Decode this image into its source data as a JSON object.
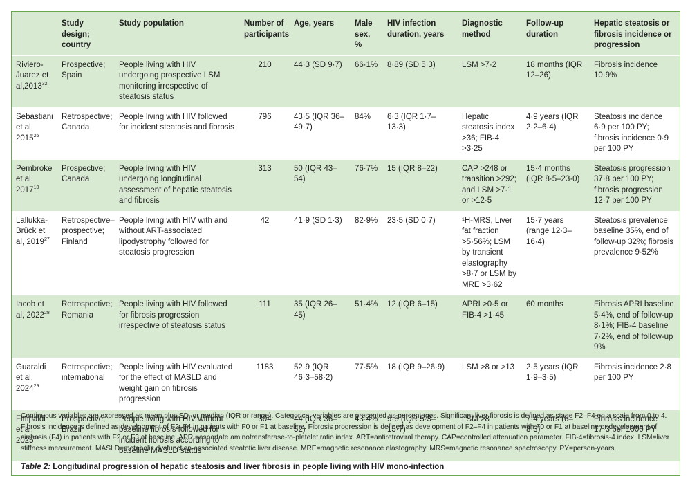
{
  "table": {
    "headers": [
      "",
      "Study design; country",
      "Study population",
      "Number of participants",
      "Age, years",
      "Male sex, %",
      "HIV infection duration, years",
      "Diagnostic method",
      "Follow-up duration",
      "Hepatic steatosis or fibrosis incidence or progression"
    ],
    "rows": [
      {
        "study": "Riviero-Juarez et al,2013",
        "ref": "32",
        "design": "Prospective; Spain",
        "population": "People living with HIV undergoing prospective LSM monitoring irrespective of steatosis status",
        "participants": "210",
        "age": "44·3 (SD 9·7)",
        "male": "66·1%",
        "duration": "8·89 (SD 5·3)",
        "method": "LSM >7·2",
        "followup": "18 months (IQR 12–26)",
        "outcome": "Fibrosis incidence 10·9%"
      },
      {
        "study": "Sebastiani et al, 2015",
        "ref": "26",
        "design": "Retrospective; Canada",
        "population": "People living with HIV followed for incident steatosis and fibrosis",
        "participants": "796",
        "age": "43·5 (IQR 36–49·7)",
        "male": "84%",
        "duration": "6·3 (IQR 1·7–13·3)",
        "method": "Hepatic steatosis index >36; FIB-4 >3·25",
        "followup": "4·9 years (IQR 2·2–6·4)",
        "outcome": "Steatosis incidence 6·9 per 100 PY; fibrosis incidence 0·9 per 100 PY"
      },
      {
        "study": "Pembroke et al, 2017",
        "ref": "10",
        "design": "Prospective; Canada",
        "population": "People living with HIV undergoing longitudinal assessment of hepatic steatosis and fibrosis",
        "participants": "313",
        "age": "50 (IQR 43–54)",
        "male": "76·7%",
        "duration": "15 (IQR 8–22)",
        "method": "CAP >248 or transition >292; and LSM >7·1 or >12·5",
        "followup": "15·4 months (IQR 8·5–23·0)",
        "outcome": "Steatosis progression 37·8 per 100 PY; fibrosis progression 12·7 per 100 PY"
      },
      {
        "study": "Lallukka-Brück et al, 2019",
        "ref": "27",
        "design": "Retrospective–prospective; Finland",
        "population": "People living with HIV with and without ART-associated lipodystrophy followed for steatosis progression",
        "participants": "42",
        "age": "41·9 (SD 1·3)",
        "male": "82·9%",
        "duration": "23·5 (SD 0·7)",
        "method": "¹H-MRS, Liver fat fraction >5·56%; LSM by transient elastography >8·7 or LSM by MRE >3·62",
        "followup": "15·7 years (range 12·3–16·4)",
        "outcome": "Steatosis prevalence baseline 35%, end of follow-up 32%; fibrosis prevalence 9·52%"
      },
      {
        "study": "Iacob et al, 2022",
        "ref": "28",
        "design": "Retrospective; Romania",
        "population": "People living with HIV followed for fibrosis progression irrespective of steatosis status",
        "participants": "111",
        "age": "35 (IQR 26–45)",
        "male": "51·4%",
        "duration": "12 (IQR 6–15)",
        "method": "APRI >0·5 or FIB-4 >1·45",
        "followup": "60 months",
        "outcome": "Fibrosis APRI baseline 5·4%, end of follow-up 8·1%; FIB-4 baseline 7·2%, end of follow-up 9%"
      },
      {
        "study": "Guaraldi et al, 2024",
        "ref": "29",
        "design": "Retrospective; international",
        "population": "People living with HIV evaluated for the effect of MASLD and weight gain on fibrosis progression",
        "participants": "1183",
        "age": "52·9 (IQR 46·3–58·2)",
        "male": "77·5%",
        "duration": "18 (IQR 9–26·9)",
        "method": "LSM >8 or >13",
        "followup": "2·5 years (IQR 1·9–3·5)",
        "outcome": "Fibrosis incidence 2·8 per 100 PY"
      },
      {
        "study": "Fittipaldi et al, 2025",
        "ref": "30",
        "design": "Prospective; Brazil",
        "population": "People living with HIV without baseline fibrosis followed for incident fibrosis according to baseline MASLD status",
        "participants": "304",
        "age": "44 (IQR 36–52)",
        "male": "43·4%",
        "duration": "9·6 (IQR 5·3–15·7)",
        "method": "LSM >8",
        "followup": "7·4 years (6–8·3)",
        "outcome": "Fibrosis incidence 17·3 per 1000 PY"
      }
    ]
  },
  "footnote": "Continuous variables are expressed as mean plus SD, or median (IQR or range). Categorical variables are presented as percentages. Significant liver fibrosis is defined as stage F2–F4 on a scale from 0 to 4. Fibrosis incidence is defined as development of F2–F4 in patients with F0 or F1 at baseline. Fibrosis progression is defined as development of F2–F4 in patients with F0 or F1 at baseline or development of cirrhosis (F4) in patients with F2 or F3 at baseline. APRI=aspartate aminotransferase-to-platelet ratio index. ART=antiretroviral therapy. CAP=controlled attenuation parameter. FIB-4=fibrosis-4 index. LSM=liver stiffness measurement. MASLD=metabolic dysfunction-associated steatotic liver disease. MRE=magnetic resonance elastography. MRS=magnetic resonance spectroscopy. PY=person-years.",
  "caption": {
    "label": "Table 2:",
    "text": " Longitudinal progression of hepatic steatosis and liver fibrosis in people living with HIV mono-infection"
  },
  "colors": {
    "band": "#d9ead3",
    "border": "#6aa84f"
  }
}
